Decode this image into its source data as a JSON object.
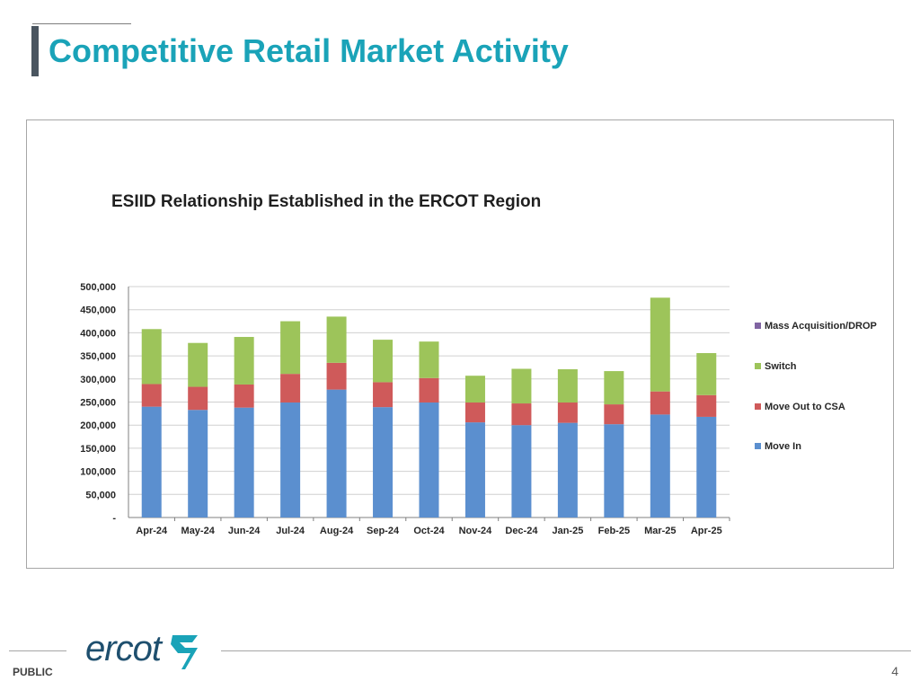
{
  "slide": {
    "title": "Competitive Retail Market Activity",
    "footer_label": "PUBLIC",
    "page_number": "4",
    "logo_text": "ercot"
  },
  "colors": {
    "title": "#1aa3b8",
    "move_in": "#5b8fcf",
    "move_out": "#cf5a5a",
    "switch": "#9dc45a",
    "mass_acq": "#8064a2"
  },
  "chart_data": {
    "type": "bar",
    "stacked": true,
    "title": "ESIID Relationship Established in the ERCOT Region",
    "categories": [
      "Apr-24",
      "May-24",
      "Jun-24",
      "Jul-24",
      "Aug-24",
      "Sep-24",
      "Oct-24",
      "Nov-24",
      "Dec-24",
      "Jan-25",
      "Feb-25",
      "Mar-25",
      "Apr-25"
    ],
    "series": [
      {
        "name": "Move In",
        "color": "#5b8fcf",
        "values": [
          240000,
          233000,
          238000,
          249000,
          277000,
          239000,
          249000,
          206000,
          200000,
          205000,
          202000,
          223000,
          218000
        ]
      },
      {
        "name": "Move Out to CSA",
        "color": "#cf5a5a",
        "values": [
          49000,
          50000,
          50000,
          62000,
          58000,
          54000,
          53000,
          43000,
          47000,
          44000,
          43000,
          50000,
          47000
        ]
      },
      {
        "name": "Switch",
        "color": "#9dc45a",
        "values": [
          119000,
          95000,
          103000,
          114000,
          100000,
          92000,
          79000,
          58000,
          75000,
          72000,
          72000,
          203000,
          91000
        ]
      },
      {
        "name": "Mass Acquisition/DROP",
        "color": "#8064a2",
        "values": [
          0,
          0,
          0,
          0,
          0,
          0,
          0,
          0,
          0,
          0,
          0,
          0,
          0
        ]
      }
    ],
    "legend_order": [
      "Mass Acquisition/DROP",
      "Switch",
      "Move Out to CSA",
      "Move In"
    ],
    "y_ticks": [
      "-",
      "50,000",
      "100,000",
      "150,000",
      "200,000",
      "250,000",
      "300,000",
      "350,000",
      "400,000",
      "450,000",
      "500,000"
    ],
    "ylim": [
      0,
      500000
    ],
    "grid": true,
    "legend": "right"
  }
}
